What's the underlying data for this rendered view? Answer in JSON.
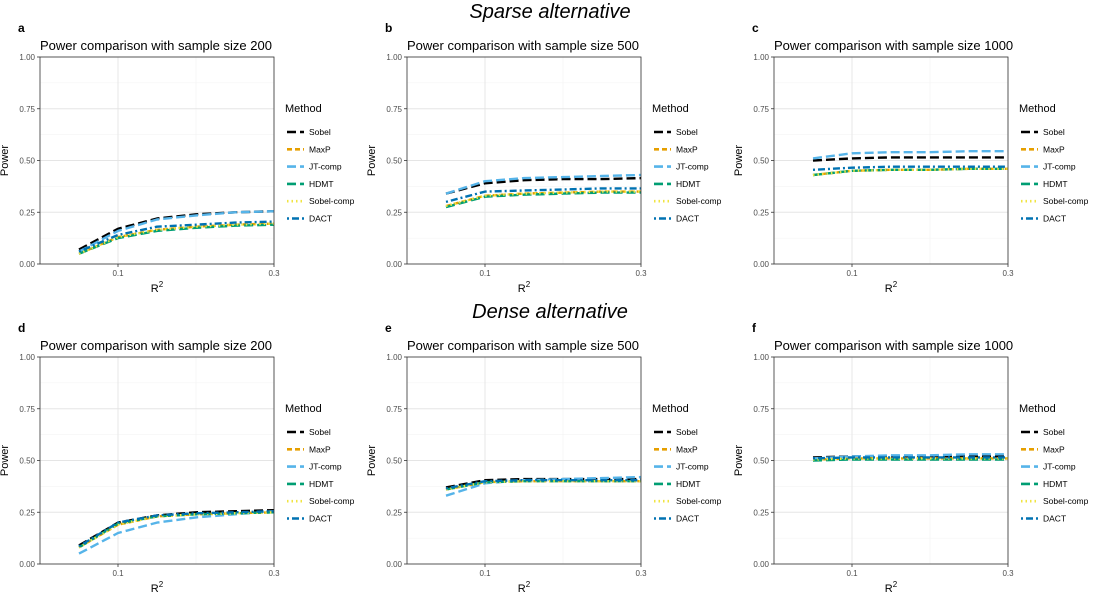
{
  "figure": {
    "row_titles": [
      "Sparse alternative",
      "Dense alternative"
    ]
  },
  "legend": {
    "title": "Method",
    "entries": [
      {
        "name": "Sobel",
        "color": "#000000",
        "dash": "longdash"
      },
      {
        "name": "MaxP",
        "color": "#E69F00",
        "dash": "dashed"
      },
      {
        "name": "JT-comp",
        "color": "#56B4E9",
        "dash": "longdash"
      },
      {
        "name": "HDMT",
        "color": "#009E73",
        "dash": "longdash"
      },
      {
        "name": "Sobel-comp",
        "color": "#F0E442",
        "dash": "dotted"
      },
      {
        "name": "DACT",
        "color": "#0072B2",
        "dash": "dotdash"
      }
    ]
  },
  "chart_data": [
    {
      "panel": "a",
      "type": "line",
      "title": "Power comparison with sample size 200",
      "xlabel": "R",
      "xlabel_sup": "2",
      "ylabel": "Power",
      "xlim": [
        0.0,
        0.3
      ],
      "ylim": [
        0,
        1
      ],
      "x_ticks": [
        0.1,
        0.3
      ],
      "x_tick_labels": [
        "0.1",
        "0.3"
      ],
      "y_ticks": [
        0,
        0.25,
        0.5,
        0.75,
        1.0
      ],
      "y_tick_labels": [
        "0.00",
        "0.25",
        "0.50",
        "0.75",
        "1.00"
      ],
      "x": [
        0.05,
        0.1,
        0.15,
        0.2,
        0.25,
        0.3
      ],
      "series": [
        {
          "name": "Sobel",
          "values": [
            0.07,
            0.17,
            0.22,
            0.24,
            0.25,
            0.255
          ]
        },
        {
          "name": "MaxP",
          "values": [
            0.05,
            0.13,
            0.165,
            0.18,
            0.19,
            0.195
          ]
        },
        {
          "name": "JT-comp",
          "values": [
            0.06,
            0.16,
            0.215,
            0.235,
            0.25,
            0.255
          ]
        },
        {
          "name": "HDMT",
          "values": [
            0.05,
            0.125,
            0.16,
            0.175,
            0.185,
            0.19
          ]
        },
        {
          "name": "Sobel-comp",
          "values": [
            0.05,
            0.13,
            0.165,
            0.18,
            0.19,
            0.195
          ]
        },
        {
          "name": "DACT",
          "values": [
            0.06,
            0.14,
            0.18,
            0.19,
            0.2,
            0.205
          ]
        }
      ]
    },
    {
      "panel": "b",
      "type": "line",
      "title": "Power comparison with sample size 500",
      "xlabel": "R",
      "xlabel_sup": "2",
      "ylabel": "Power",
      "xlim": [
        0.0,
        0.3
      ],
      "ylim": [
        0,
        1
      ],
      "x_ticks": [
        0.1,
        0.3
      ],
      "x_tick_labels": [
        "0.1",
        "0.3"
      ],
      "y_ticks": [
        0,
        0.25,
        0.5,
        0.75,
        1.0
      ],
      "y_tick_labels": [
        "0.00",
        "0.25",
        "0.50",
        "0.75",
        "1.00"
      ],
      "x": [
        0.05,
        0.1,
        0.15,
        0.2,
        0.25,
        0.3
      ],
      "series": [
        {
          "name": "Sobel",
          "values": [
            0.34,
            0.39,
            0.405,
            0.41,
            0.41,
            0.415
          ]
        },
        {
          "name": "MaxP",
          "values": [
            0.28,
            0.33,
            0.34,
            0.345,
            0.35,
            0.35
          ]
        },
        {
          "name": "JT-comp",
          "values": [
            0.34,
            0.4,
            0.415,
            0.42,
            0.425,
            0.43
          ]
        },
        {
          "name": "HDMT",
          "values": [
            0.275,
            0.325,
            0.335,
            0.34,
            0.345,
            0.345
          ]
        },
        {
          "name": "Sobel-comp",
          "values": [
            0.28,
            0.33,
            0.34,
            0.345,
            0.35,
            0.35
          ]
        },
        {
          "name": "DACT",
          "values": [
            0.3,
            0.35,
            0.355,
            0.36,
            0.365,
            0.365
          ]
        }
      ]
    },
    {
      "panel": "c",
      "type": "line",
      "title": "Power comparison with sample size 1000",
      "xlabel": "R",
      "xlabel_sup": "2",
      "ylabel": "Power",
      "xlim": [
        0.0,
        0.3
      ],
      "ylim": [
        0,
        1
      ],
      "x_ticks": [
        0.1,
        0.3
      ],
      "x_tick_labels": [
        "0.1",
        "0.3"
      ],
      "y_ticks": [
        0,
        0.25,
        0.5,
        0.75,
        1.0
      ],
      "y_tick_labels": [
        "0.00",
        "0.25",
        "0.50",
        "0.75",
        "1.00"
      ],
      "x": [
        0.05,
        0.1,
        0.15,
        0.2,
        0.25,
        0.3
      ],
      "series": [
        {
          "name": "Sobel",
          "values": [
            0.5,
            0.51,
            0.515,
            0.515,
            0.515,
            0.515
          ]
        },
        {
          "name": "MaxP",
          "values": [
            0.43,
            0.45,
            0.455,
            0.455,
            0.46,
            0.46
          ]
        },
        {
          "name": "JT-comp",
          "values": [
            0.51,
            0.535,
            0.54,
            0.54,
            0.545,
            0.545
          ]
        },
        {
          "name": "HDMT",
          "values": [
            0.43,
            0.45,
            0.455,
            0.455,
            0.46,
            0.46
          ]
        },
        {
          "name": "Sobel-comp",
          "values": [
            0.43,
            0.45,
            0.455,
            0.455,
            0.46,
            0.46
          ]
        },
        {
          "name": "DACT",
          "values": [
            0.455,
            0.465,
            0.47,
            0.47,
            0.47,
            0.47
          ]
        }
      ]
    },
    {
      "panel": "d",
      "type": "line",
      "title": "Power comparison with sample size 200",
      "xlabel": "R",
      "xlabel_sup": "2",
      "ylabel": "Power",
      "xlim": [
        0.0,
        0.3
      ],
      "ylim": [
        0,
        1
      ],
      "x_ticks": [
        0.1,
        0.3
      ],
      "x_tick_labels": [
        "0.1",
        "0.3"
      ],
      "y_ticks": [
        0,
        0.25,
        0.5,
        0.75,
        1.0
      ],
      "y_tick_labels": [
        "0.00",
        "0.25",
        "0.50",
        "0.75",
        "1.00"
      ],
      "x": [
        0.05,
        0.1,
        0.15,
        0.2,
        0.25,
        0.3
      ],
      "series": [
        {
          "name": "Sobel",
          "values": [
            0.09,
            0.2,
            0.235,
            0.25,
            0.255,
            0.26
          ]
        },
        {
          "name": "MaxP",
          "values": [
            0.08,
            0.19,
            0.23,
            0.24,
            0.245,
            0.25
          ]
        },
        {
          "name": "JT-comp",
          "values": [
            0.05,
            0.15,
            0.2,
            0.225,
            0.24,
            0.255
          ]
        },
        {
          "name": "HDMT",
          "values": [
            0.08,
            0.195,
            0.23,
            0.24,
            0.245,
            0.25
          ]
        },
        {
          "name": "Sobel-comp",
          "values": [
            0.08,
            0.19,
            0.23,
            0.24,
            0.245,
            0.25
          ]
        },
        {
          "name": "DACT",
          "values": [
            0.085,
            0.2,
            0.235,
            0.245,
            0.25,
            0.255
          ]
        }
      ]
    },
    {
      "panel": "e",
      "type": "line",
      "title": "Power comparison with sample size 500",
      "xlabel": "R",
      "xlabel_sup": "2",
      "ylabel": "Power",
      "xlim": [
        0.0,
        0.3
      ],
      "ylim": [
        0,
        1
      ],
      "x_ticks": [
        0.1,
        0.3
      ],
      "x_tick_labels": [
        "0.1",
        "0.3"
      ],
      "y_ticks": [
        0,
        0.25,
        0.5,
        0.75,
        1.0
      ],
      "y_tick_labels": [
        "0.00",
        "0.25",
        "0.50",
        "0.75",
        "1.00"
      ],
      "x": [
        0.05,
        0.1,
        0.15,
        0.2,
        0.25,
        0.3
      ],
      "series": [
        {
          "name": "Sobel",
          "values": [
            0.37,
            0.405,
            0.41,
            0.41,
            0.41,
            0.41
          ]
        },
        {
          "name": "MaxP",
          "values": [
            0.36,
            0.395,
            0.4,
            0.4,
            0.4,
            0.4
          ]
        },
        {
          "name": "JT-comp",
          "values": [
            0.33,
            0.39,
            0.405,
            0.41,
            0.415,
            0.42
          ]
        },
        {
          "name": "HDMT",
          "values": [
            0.36,
            0.395,
            0.4,
            0.4,
            0.4,
            0.4
          ]
        },
        {
          "name": "Sobel-comp",
          "values": [
            0.36,
            0.395,
            0.4,
            0.4,
            0.4,
            0.4
          ]
        },
        {
          "name": "DACT",
          "values": [
            0.365,
            0.4,
            0.405,
            0.405,
            0.405,
            0.405
          ]
        }
      ]
    },
    {
      "panel": "f",
      "type": "line",
      "title": "Power comparison with sample size 1000",
      "xlabel": "R",
      "xlabel_sup": "2",
      "ylabel": "Power",
      "xlim": [
        0.0,
        0.3
      ],
      "ylim": [
        0,
        1
      ],
      "x_ticks": [
        0.1,
        0.3
      ],
      "x_tick_labels": [
        "0.1",
        "0.3"
      ],
      "y_ticks": [
        0,
        0.25,
        0.5,
        0.75,
        1.0
      ],
      "y_tick_labels": [
        "0.00",
        "0.25",
        "0.50",
        "0.75",
        "1.00"
      ],
      "x": [
        0.05,
        0.1,
        0.15,
        0.2,
        0.25,
        0.3
      ],
      "series": [
        {
          "name": "Sobel",
          "values": [
            0.515,
            0.52,
            0.52,
            0.52,
            0.52,
            0.52
          ]
        },
        {
          "name": "MaxP",
          "values": [
            0.505,
            0.51,
            0.51,
            0.51,
            0.51,
            0.51
          ]
        },
        {
          "name": "JT-comp",
          "values": [
            0.51,
            0.52,
            0.525,
            0.525,
            0.53,
            0.53
          ]
        },
        {
          "name": "HDMT",
          "values": [
            0.5,
            0.505,
            0.505,
            0.505,
            0.505,
            0.505
          ]
        },
        {
          "name": "Sobel-comp",
          "values": [
            0.505,
            0.51,
            0.51,
            0.51,
            0.51,
            0.51
          ]
        },
        {
          "name": "DACT",
          "values": [
            0.51,
            0.515,
            0.515,
            0.515,
            0.515,
            0.515
          ]
        }
      ]
    }
  ]
}
